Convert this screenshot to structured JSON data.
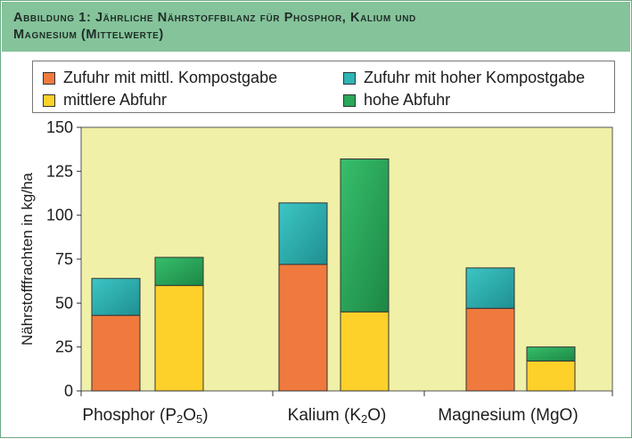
{
  "header": {
    "title_line1": "Abbildung 1: Jährliche Nährstoffbilanz für Phosphor, Kalium und",
    "title_line2": "Magnesium (Mittelwerte)"
  },
  "colors": {
    "plot_bg": "#f0f0a8",
    "title_bg": "#85c39a",
    "zufuhr_mittel": "#f07a3e",
    "zufuhr_hoch": "#2eb5b5",
    "abfuhr_mittel": "#fdd12a",
    "abfuhr_hoch": "#2aa85a"
  },
  "chart_data": {
    "type": "bar",
    "stacked": true,
    "ylabel": "Nährstofffrachten in kg/ha",
    "ylim": [
      0,
      150
    ],
    "yticks": [
      0,
      25,
      50,
      75,
      100,
      125,
      150
    ],
    "ytick_labels": [
      "0",
      "25",
      "50",
      "75",
      "100",
      "125",
      "150"
    ],
    "grid": false,
    "legend_position": "top",
    "categories": [
      {
        "base": "Phosphor (P",
        "sub1": "2",
        "mid": "O",
        "sub2": "5",
        "end": ")"
      },
      {
        "base": "Kalium (K",
        "sub1": "2",
        "mid": "O",
        "sub2": "",
        "end": ")"
      },
      {
        "base": "Magnesium (MgO)",
        "sub1": "",
        "mid": "",
        "sub2": "",
        "end": ""
      }
    ],
    "series": [
      {
        "name": "Zufuhr mit mittl. Kompostgabe",
        "color_key": "zufuhr_mittel",
        "values": [
          43,
          72,
          47
        ],
        "stack": "zufuhr"
      },
      {
        "name": "Zufuhr mit hoher Kompostgabe",
        "color_key": "zufuhr_hoch",
        "values": [
          21,
          35,
          23
        ],
        "stack": "zufuhr"
      },
      {
        "name": "mittlere Abfuhr",
        "color_key": "abfuhr_mittel",
        "values": [
          60,
          45,
          17
        ],
        "stack": "abfuhr"
      },
      {
        "name": "hohe Abfuhr",
        "color_key": "abfuhr_hoch",
        "values": [
          16,
          87,
          8
        ],
        "stack": "abfuhr"
      }
    ]
  }
}
